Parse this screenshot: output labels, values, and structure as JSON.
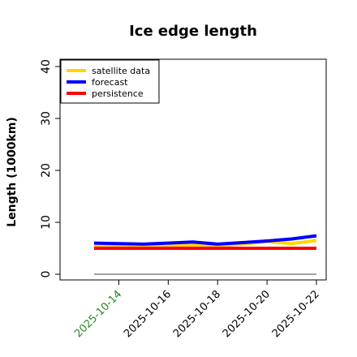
{
  "chart_data": {
    "type": "line",
    "title": "Ice edge length",
    "ylabel": "Length (1000km)",
    "xlabel": "",
    "ylim": [
      0,
      42
    ],
    "yticks": [
      0,
      10,
      20,
      30,
      40
    ],
    "x": [
      "2025-10-13",
      "2025-10-14",
      "2025-10-15",
      "2025-10-16",
      "2025-10-17",
      "2025-10-18",
      "2025-10-19",
      "2025-10-20",
      "2025-10-21",
      "2025-10-22"
    ],
    "xticks": [
      {
        "label": "2025-10-14",
        "color": "#228b22"
      },
      {
        "label": "2025-10-16",
        "color": "#000000"
      },
      {
        "label": "2025-10-18",
        "color": "#000000"
      },
      {
        "label": "2025-10-20",
        "color": "#000000"
      },
      {
        "label": "2025-10-22",
        "color": "#000000"
      }
    ],
    "series": [
      {
        "name": "satellite data",
        "color": "#ffd700",
        "values": [
          5.5,
          5.5,
          5.4,
          5.4,
          5.6,
          5.5,
          5.8,
          6.3,
          5.9,
          6.5
        ]
      },
      {
        "name": "forecast",
        "color": "#0000ff",
        "values": [
          6.0,
          5.9,
          5.8,
          6.0,
          6.2,
          5.8,
          6.1,
          6.4,
          6.8,
          7.4
        ]
      },
      {
        "name": "persistence",
        "color": "#ff0000",
        "values": [
          5.0,
          5.0,
          5.0,
          5.0,
          5.0,
          5.0,
          5.0,
          5.0,
          5.0,
          5.0
        ]
      }
    ],
    "baseline": {
      "color": "#808080",
      "value": 0
    },
    "grid": false,
    "legend_position": "top-left"
  }
}
